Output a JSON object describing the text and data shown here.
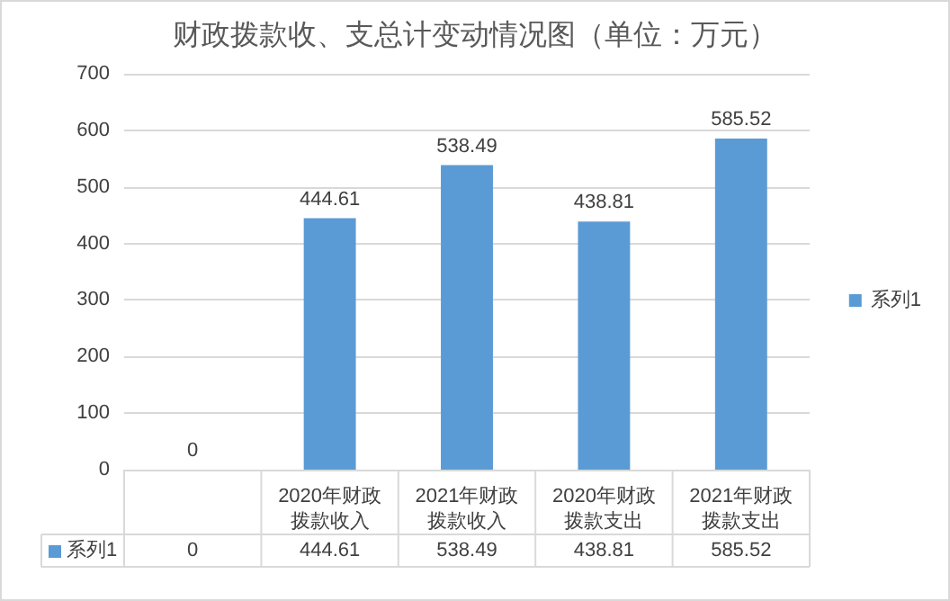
{
  "chart_data": {
    "type": "bar",
    "title": "财政拨款收、支总计变动情况图（单位：万元）",
    "categories": [
      null,
      "2020年财政拨款收入",
      "2021年财政拨款收入",
      "2020年财政拨款支出",
      "2021年财政拨款支出"
    ],
    "series": [
      {
        "name": "系列1",
        "color": "#5b9bd5",
        "values": [
          0,
          444.61,
          538.49,
          438.81,
          585.52
        ],
        "value_labels": [
          "0",
          "444.61",
          "538.49",
          "438.81",
          "585.52"
        ]
      }
    ],
    "ylim": [
      0,
      700
    ],
    "yticks": [
      0,
      100,
      200,
      300,
      400,
      500,
      600,
      700
    ],
    "grid": "y",
    "legend": "right",
    "data_labels": true
  }
}
